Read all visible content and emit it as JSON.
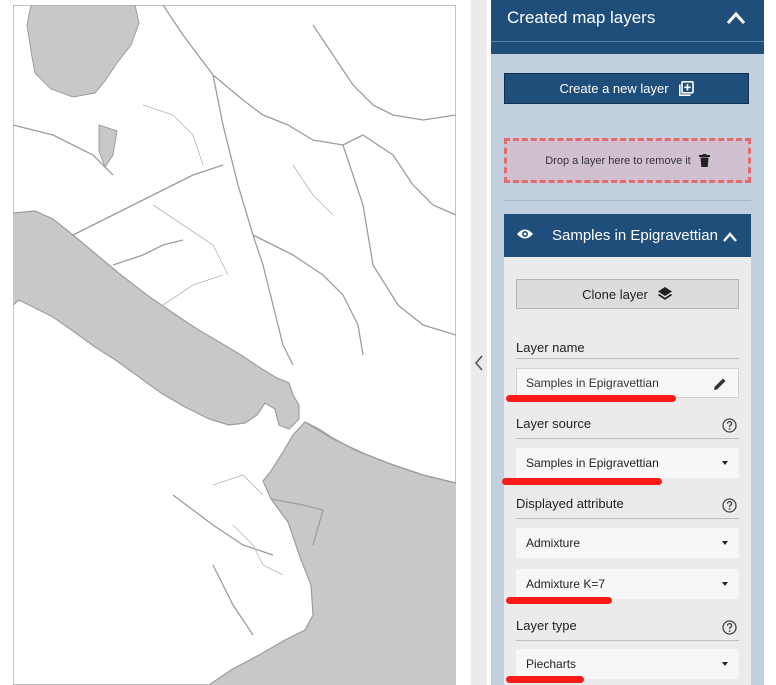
{
  "panel": {
    "title": "Created map layers",
    "new_layer_label": "Create a new layer",
    "drop_zone_label": "Drop a layer here to remove it"
  },
  "layer": {
    "title": "Samples in Epigravettian",
    "clone_label": "Clone layer",
    "fields": {
      "name_label": "Layer name",
      "name_value": "Samples in Epigravettian",
      "source_label": "Layer source",
      "source_value": "Samples in Epigravettian",
      "attribute_label": "Displayed attribute",
      "attribute_value": "Admixture",
      "attribute_sub_value": "Admixture K=7",
      "type_label": "Layer type",
      "type_value": "Piecharts"
    }
  },
  "icons": {
    "panel_toggle": "chevron-up-icon",
    "new_layer": "add-layer-icon",
    "drop_zone": "trash-icon",
    "visibility": "eye-icon",
    "layer_toggle": "chevron-up-icon",
    "clone": "layers-icon",
    "edit": "pencil-icon",
    "help": "help-circle-icon",
    "dropdown": "caret-down-icon",
    "sidebar_collapse": "chevron-left-icon"
  },
  "colors": {
    "accent": "#1f4e7b",
    "panel_bg": "#c1cfdf",
    "drop_border": "#e26b6b",
    "annotation_red": "#ff1a1a",
    "land": "#ffffff",
    "water": "#c8c8c8"
  }
}
